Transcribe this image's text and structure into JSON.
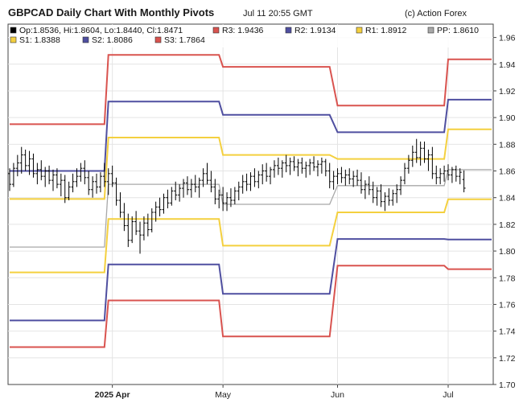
{
  "header": {
    "title": "GBPCAD Daily Chart With Monthly Pivots",
    "timestamp": "Jul 11 20:55 GMT",
    "credit": "(c) Action Forex"
  },
  "colors": {
    "r3": "#d9534f",
    "r2": "#4f4fa0",
    "r1": "#f4d03f",
    "pp": "#a8a8a8",
    "s1": "#f4d03f",
    "s2": "#4f4fa0",
    "s3": "#d9534f",
    "price": "#000000",
    "grid": "#e4e4e4"
  },
  "chart_data": {
    "type": "line",
    "ylim": [
      1.7,
      1.97
    ],
    "yticks": [
      "1.70",
      "1.72",
      "1.74",
      "1.76",
      "1.78",
      "1.80",
      "1.82",
      "1.84",
      "1.86",
      "1.88",
      "1.90",
      "1.92",
      "1.94",
      "1.96"
    ],
    "xticks": [
      {
        "label": "2025 Apr",
        "x": 26,
        "bold": true
      },
      {
        "label": "May",
        "x": 54,
        "bold": false
      },
      {
        "label": "Jun",
        "x": 83,
        "bold": false
      },
      {
        "label": "Jul",
        "x": 111,
        "bold": false
      }
    ],
    "x_range": [
      0,
      122
    ],
    "legend": [
      {
        "key": "ohlc",
        "label": "Op:1.8536, Hi:1.8604, Lo:1.8440, Cl:1.8471",
        "color": "#000000"
      },
      {
        "key": "r3",
        "label": "R3: 1.9436",
        "color": "#d9534f"
      },
      {
        "key": "r2",
        "label": "R2: 1.9134",
        "color": "#4f4fa0"
      },
      {
        "key": "r1",
        "label": "R1: 1.8912",
        "color": "#f4d03f"
      },
      {
        "key": "pp",
        "label": "PP: 1.8610",
        "color": "#a8a8a8"
      },
      {
        "key": "s1",
        "label": "S1: 1.8388",
        "color": "#f4d03f"
      },
      {
        "key": "s2",
        "label": "S2: 1.8086",
        "color": "#4f4fa0"
      },
      {
        "key": "s3",
        "label": "S3: 1.7864",
        "color": "#d9534f"
      }
    ],
    "pivots": [
      {
        "name": "R3",
        "color": "#d9534f",
        "segments": [
          {
            "from": 0,
            "to": 24,
            "value": 1.895
          },
          {
            "from": 25,
            "to": 53,
            "value": 1.947
          },
          {
            "from": 54,
            "to": 81,
            "value": 1.938
          },
          {
            "from": 83,
            "to": 110,
            "value": 1.909
          },
          {
            "from": 111,
            "to": 122,
            "value": 1.9436
          }
        ]
      },
      {
        "name": "R2",
        "color": "#4f4fa0",
        "segments": [
          {
            "from": 0,
            "to": 24,
            "value": 1.86
          },
          {
            "from": 25,
            "to": 53,
            "value": 1.912
          },
          {
            "from": 54,
            "to": 81,
            "value": 1.902
          },
          {
            "from": 83,
            "to": 110,
            "value": 1.889
          },
          {
            "from": 111,
            "to": 122,
            "value": 1.9134
          }
        ]
      },
      {
        "name": "R1",
        "color": "#f4d03f",
        "segments": [
          {
            "from": 0,
            "to": 24,
            "value": 1.839
          },
          {
            "from": 25,
            "to": 53,
            "value": 1.885
          },
          {
            "from": 54,
            "to": 81,
            "value": 1.872
          },
          {
            "from": 83,
            "to": 110,
            "value": 1.869
          },
          {
            "from": 111,
            "to": 122,
            "value": 1.8912
          }
        ]
      },
      {
        "name": "PP",
        "color": "#a8a8a8",
        "segments": [
          {
            "from": 0,
            "to": 24,
            "value": 1.803
          },
          {
            "from": 25,
            "to": 53,
            "value": 1.85
          },
          {
            "from": 54,
            "to": 81,
            "value": 1.835
          },
          {
            "from": 83,
            "to": 110,
            "value": 1.849
          },
          {
            "from": 111,
            "to": 122,
            "value": 1.861
          }
        ]
      },
      {
        "name": "S1",
        "color": "#f4d03f",
        "segments": [
          {
            "from": 0,
            "to": 24,
            "value": 1.784
          },
          {
            "from": 25,
            "to": 53,
            "value": 1.824
          },
          {
            "from": 54,
            "to": 81,
            "value": 1.804
          },
          {
            "from": 83,
            "to": 110,
            "value": 1.829
          },
          {
            "from": 111,
            "to": 122,
            "value": 1.8388
          }
        ]
      },
      {
        "name": "S2",
        "color": "#4f4fa0",
        "segments": [
          {
            "from": 0,
            "to": 24,
            "value": 1.748
          },
          {
            "from": 25,
            "to": 53,
            "value": 1.79
          },
          {
            "from": 54,
            "to": 81,
            "value": 1.768
          },
          {
            "from": 83,
            "to": 110,
            "value": 1.809
          },
          {
            "from": 111,
            "to": 122,
            "value": 1.8086
          }
        ]
      },
      {
        "name": "S3",
        "color": "#d9534f",
        "segments": [
          {
            "from": 0,
            "to": 24,
            "value": 1.728
          },
          {
            "from": 25,
            "to": 53,
            "value": 1.763
          },
          {
            "from": 54,
            "to": 81,
            "value": 1.736
          },
          {
            "from": 83,
            "to": 110,
            "value": 1.789
          },
          {
            "from": 111,
            "to": 122,
            "value": 1.7864
          }
        ]
      }
    ],
    "ohlc": [
      [
        1.858,
        1.862,
        1.845,
        1.85
      ],
      [
        1.85,
        1.866,
        1.848,
        1.862
      ],
      [
        1.862,
        1.872,
        1.856,
        1.866
      ],
      [
        1.866,
        1.878,
        1.858,
        1.872
      ],
      [
        1.872,
        1.876,
        1.86,
        1.864
      ],
      [
        1.864,
        1.875,
        1.857,
        1.869
      ],
      [
        1.869,
        1.873,
        1.855,
        1.858
      ],
      [
        1.858,
        1.866,
        1.85,
        1.861
      ],
      [
        1.861,
        1.868,
        1.853,
        1.856
      ],
      [
        1.856,
        1.863,
        1.848,
        1.86
      ],
      [
        1.86,
        1.864,
        1.85,
        1.853
      ],
      [
        1.853,
        1.861,
        1.845,
        1.857
      ],
      [
        1.857,
        1.862,
        1.847,
        1.85
      ],
      [
        1.85,
        1.858,
        1.841,
        1.853
      ],
      [
        1.853,
        1.857,
        1.836,
        1.84
      ],
      [
        1.84,
        1.852,
        1.838,
        1.848
      ],
      [
        1.848,
        1.858,
        1.844,
        1.852
      ],
      [
        1.852,
        1.862,
        1.848,
        1.856
      ],
      [
        1.856,
        1.866,
        1.852,
        1.862
      ],
      [
        1.862,
        1.868,
        1.85,
        1.855
      ],
      [
        1.855,
        1.86,
        1.842,
        1.846
      ],
      [
        1.846,
        1.856,
        1.84,
        1.852
      ],
      [
        1.852,
        1.858,
        1.843,
        1.848
      ],
      [
        1.848,
        1.859,
        1.844,
        1.856
      ],
      [
        1.856,
        1.866,
        1.848,
        1.852
      ],
      [
        1.852,
        1.862,
        1.842,
        1.858
      ],
      [
        1.858,
        1.864,
        1.848,
        1.851
      ],
      [
        1.851,
        1.855,
        1.834,
        1.838
      ],
      [
        1.838,
        1.844,
        1.825,
        1.829
      ],
      [
        1.829,
        1.836,
        1.815,
        1.819
      ],
      [
        1.819,
        1.828,
        1.803,
        1.808
      ],
      [
        1.808,
        1.826,
        1.806,
        1.822
      ],
      [
        1.822,
        1.83,
        1.812,
        1.815
      ],
      [
        1.815,
        1.822,
        1.798,
        1.812
      ],
      [
        1.812,
        1.826,
        1.808,
        1.821
      ],
      [
        1.821,
        1.828,
        1.811,
        1.816
      ],
      [
        1.816,
        1.832,
        1.814,
        1.829
      ],
      [
        1.829,
        1.837,
        1.822,
        1.833
      ],
      [
        1.833,
        1.84,
        1.826,
        1.831
      ],
      [
        1.831,
        1.843,
        1.828,
        1.84
      ],
      [
        1.84,
        1.846,
        1.832,
        1.836
      ],
      [
        1.836,
        1.848,
        1.834,
        1.845
      ],
      [
        1.845,
        1.852,
        1.838,
        1.842
      ],
      [
        1.842,
        1.85,
        1.837,
        1.847
      ],
      [
        1.847,
        1.854,
        1.84,
        1.851
      ],
      [
        1.851,
        1.856,
        1.842,
        1.846
      ],
      [
        1.846,
        1.854,
        1.84,
        1.85
      ],
      [
        1.85,
        1.857,
        1.844,
        1.848
      ],
      [
        1.848,
        1.855,
        1.84,
        1.853
      ],
      [
        1.853,
        1.862,
        1.848,
        1.858
      ],
      [
        1.858,
        1.866,
        1.85,
        1.853
      ],
      [
        1.853,
        1.86,
        1.844,
        1.848
      ],
      [
        1.848,
        1.854,
        1.835,
        1.839
      ],
      [
        1.839,
        1.846,
        1.832,
        1.842
      ],
      [
        1.842,
        1.848,
        1.83,
        1.836
      ],
      [
        1.836,
        1.844,
        1.83,
        1.84
      ],
      [
        1.84,
        1.847,
        1.833,
        1.838
      ],
      [
        1.838,
        1.848,
        1.835,
        1.845
      ],
      [
        1.845,
        1.852,
        1.838,
        1.848
      ],
      [
        1.848,
        1.857,
        1.843,
        1.852
      ],
      [
        1.852,
        1.858,
        1.845,
        1.85
      ],
      [
        1.85,
        1.859,
        1.845,
        1.856
      ],
      [
        1.856,
        1.862,
        1.848,
        1.852
      ],
      [
        1.852,
        1.86,
        1.847,
        1.857
      ],
      [
        1.857,
        1.865,
        1.85,
        1.86
      ],
      [
        1.86,
        1.866,
        1.852,
        1.856
      ],
      [
        1.856,
        1.863,
        1.85,
        1.861
      ],
      [
        1.861,
        1.868,
        1.855,
        1.864
      ],
      [
        1.864,
        1.87,
        1.857,
        1.862
      ],
      [
        1.862,
        1.868,
        1.855,
        1.866
      ],
      [
        1.866,
        1.872,
        1.859,
        1.864
      ],
      [
        1.864,
        1.87,
        1.857,
        1.867
      ],
      [
        1.867,
        1.871,
        1.86,
        1.863
      ],
      [
        1.863,
        1.869,
        1.856,
        1.866
      ],
      [
        1.866,
        1.87,
        1.858,
        1.862
      ],
      [
        1.862,
        1.867,
        1.855,
        1.864
      ],
      [
        1.864,
        1.869,
        1.857,
        1.866
      ],
      [
        1.866,
        1.871,
        1.86,
        1.863
      ],
      [
        1.863,
        1.868,
        1.856,
        1.865
      ],
      [
        1.865,
        1.87,
        1.858,
        1.867
      ],
      [
        1.867,
        1.869,
        1.856,
        1.86
      ],
      [
        1.86,
        1.866,
        1.847,
        1.852
      ],
      [
        1.852,
        1.86,
        1.846,
        1.856
      ],
      [
        1.856,
        1.862,
        1.85,
        1.858
      ],
      [
        1.858,
        1.863,
        1.851,
        1.855
      ],
      [
        1.855,
        1.861,
        1.849,
        1.857
      ],
      [
        1.857,
        1.862,
        1.85,
        1.854
      ],
      [
        1.854,
        1.86,
        1.848,
        1.856
      ],
      [
        1.856,
        1.861,
        1.849,
        1.853
      ],
      [
        1.853,
        1.859,
        1.843,
        1.846
      ],
      [
        1.846,
        1.853,
        1.839,
        1.85
      ],
      [
        1.85,
        1.856,
        1.842,
        1.846
      ],
      [
        1.846,
        1.852,
        1.836,
        1.84
      ],
      [
        1.84,
        1.848,
        1.834,
        1.845
      ],
      [
        1.845,
        1.85,
        1.833,
        1.837
      ],
      [
        1.837,
        1.844,
        1.83,
        1.841
      ],
      [
        1.841,
        1.847,
        1.834,
        1.838
      ],
      [
        1.838,
        1.846,
        1.834,
        1.843
      ],
      [
        1.843,
        1.85,
        1.836,
        1.846
      ],
      [
        1.846,
        1.856,
        1.842,
        1.853
      ],
      [
        1.853,
        1.866,
        1.85,
        1.862
      ],
      [
        1.862,
        1.872,
        1.858,
        1.868
      ],
      [
        1.868,
        1.879,
        1.863,
        1.874
      ],
      [
        1.874,
        1.884,
        1.866,
        1.87
      ],
      [
        1.87,
        1.882,
        1.864,
        1.877
      ],
      [
        1.877,
        1.882,
        1.866,
        1.869
      ],
      [
        1.869,
        1.876,
        1.86,
        1.872
      ],
      [
        1.872,
        1.878,
        1.854,
        1.858
      ],
      [
        1.858,
        1.864,
        1.85,
        1.855
      ],
      [
        1.855,
        1.862,
        1.85,
        1.858
      ],
      [
        1.858,
        1.864,
        1.852,
        1.86
      ],
      [
        1.86,
        1.865,
        1.853,
        1.857
      ],
      [
        1.857,
        1.863,
        1.851,
        1.861
      ],
      [
        1.861,
        1.864,
        1.852,
        1.856
      ],
      [
        1.856,
        1.862,
        1.85,
        1.859
      ],
      [
        1.8536,
        1.8604,
        1.844,
        1.8471
      ]
    ]
  }
}
